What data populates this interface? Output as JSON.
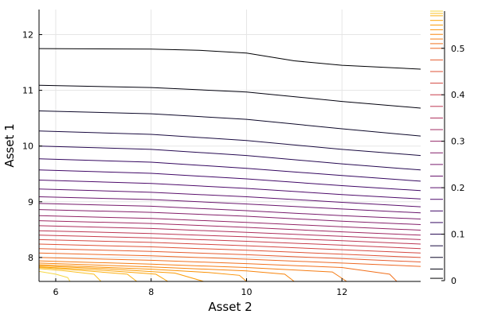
{
  "chart_data": {
    "type": "contour",
    "title": "",
    "xlabel": "Asset 2",
    "ylabel": "Asset 1",
    "xlim": [
      5.65,
      13.65
    ],
    "ylim": [
      7.57,
      12.45
    ],
    "xticks": [
      6,
      8,
      10,
      12
    ],
    "yticks": [
      8,
      9,
      10,
      11,
      12
    ],
    "xtick_labels": [
      "6",
      "8",
      "10",
      "12"
    ],
    "ytick_labels": [
      "8",
      "9",
      "10",
      "11",
      "12"
    ],
    "grid": true,
    "colormap": "inferno",
    "colorbar": {
      "range": [
        0,
        0.58
      ],
      "ticks": [
        0,
        0.1,
        0.2,
        0.3,
        0.4,
        0.5
      ],
      "tick_labels": [
        "0",
        "0.1",
        "0.2",
        "0.3",
        "0.4",
        "0.5"
      ]
    },
    "levels": [
      {
        "value": 0.005,
        "color": "#000004",
        "x": [
          5.65,
          8.0,
          9.0,
          10.0,
          11.0,
          12.0,
          13.65
        ],
        "y": [
          11.75,
          11.74,
          11.72,
          11.67,
          11.53,
          11.45,
          11.38
        ]
      },
      {
        "value": 0.025,
        "color": "#02010e",
        "x": [
          5.65,
          8.0,
          10.0,
          12.0,
          13.65
        ],
        "y": [
          11.09,
          11.05,
          10.97,
          10.8,
          10.68
        ]
      },
      {
        "value": 0.05,
        "color": "#0d0829",
        "x": [
          5.65,
          8.0,
          10.0,
          12.0,
          13.65
        ],
        "y": [
          10.63,
          10.58,
          10.48,
          10.31,
          10.18
        ]
      },
      {
        "value": 0.075,
        "color": "#1b0c41",
        "x": [
          5.65,
          8.0,
          10.0,
          12.0,
          13.65
        ],
        "y": [
          10.27,
          10.21,
          10.1,
          9.94,
          9.83
        ]
      },
      {
        "value": 0.1,
        "color": "#280b53",
        "x": [
          5.65,
          8.0,
          10.0,
          12.0,
          13.65
        ],
        "y": [
          10.0,
          9.94,
          9.83,
          9.68,
          9.57
        ]
      },
      {
        "value": 0.125,
        "color": "#360961",
        "x": [
          5.65,
          8.0,
          10.0,
          12.0,
          13.65
        ],
        "y": [
          9.77,
          9.71,
          9.6,
          9.47,
          9.37
        ]
      },
      {
        "value": 0.15,
        "color": "#420a68",
        "x": [
          5.65,
          8.0,
          10.0,
          12.0,
          13.65
        ],
        "y": [
          9.57,
          9.51,
          9.41,
          9.29,
          9.2
        ]
      },
      {
        "value": 0.175,
        "color": "#4f0d6c",
        "x": [
          5.65,
          8.0,
          10.0,
          12.0,
          13.65
        ],
        "y": [
          9.39,
          9.33,
          9.24,
          9.13,
          9.05
        ]
      },
      {
        "value": 0.2,
        "color": "#5c126e",
        "x": [
          5.65,
          8.0,
          10.0,
          12.0,
          13.65
        ],
        "y": [
          9.23,
          9.17,
          9.09,
          8.99,
          8.91
        ]
      },
      {
        "value": 0.225,
        "color": "#6a176e",
        "x": [
          5.65,
          8.0,
          10.0,
          12.0,
          13.65
        ],
        "y": [
          9.09,
          9.04,
          8.96,
          8.87,
          8.8
        ]
      },
      {
        "value": 0.25,
        "color": "#781c6d",
        "x": [
          5.65,
          8.0,
          10.0,
          12.0,
          13.65
        ],
        "y": [
          8.97,
          8.92,
          8.84,
          8.75,
          8.69
        ]
      },
      {
        "value": 0.275,
        "color": "#84206b",
        "x": [
          5.65,
          8.0,
          10.0,
          12.0,
          13.65
        ],
        "y": [
          8.86,
          8.81,
          8.74,
          8.65,
          8.59
        ]
      },
      {
        "value": 0.3,
        "color": "#932667",
        "x": [
          5.65,
          8.0,
          10.0,
          12.0,
          13.65
        ],
        "y": [
          8.75,
          8.7,
          8.63,
          8.55,
          8.49
        ]
      },
      {
        "value": 0.325,
        "color": "#a02a63",
        "x": [
          5.65,
          8.0,
          10.0,
          12.0,
          13.65
        ],
        "y": [
          8.66,
          8.61,
          8.54,
          8.46,
          8.4
        ]
      },
      {
        "value": 0.35,
        "color": "#ae305c",
        "x": [
          5.65,
          8.0,
          10.0,
          12.0,
          13.65
        ],
        "y": [
          8.57,
          8.52,
          8.45,
          8.38,
          8.32
        ]
      },
      {
        "value": 0.375,
        "color": "#bc3754",
        "x": [
          5.65,
          8.0,
          10.0,
          12.0,
          13.65
        ],
        "y": [
          8.48,
          8.43,
          8.37,
          8.3,
          8.24
        ]
      },
      {
        "value": 0.4,
        "color": "#c73e4c",
        "x": [
          5.65,
          8.0,
          10.0,
          12.0,
          13.65
        ],
        "y": [
          8.4,
          8.35,
          8.29,
          8.22,
          8.16
        ]
      },
      {
        "value": 0.425,
        "color": "#d44842",
        "x": [
          5.65,
          8.0,
          10.0,
          12.0,
          13.65
        ],
        "y": [
          8.32,
          8.27,
          8.21,
          8.14,
          8.08
        ]
      },
      {
        "value": 0.45,
        "color": "#df5337",
        "x": [
          5.65,
          8.0,
          10.0,
          12.0,
          13.65
        ],
        "y": [
          8.24,
          8.19,
          8.13,
          8.06,
          8.0
        ]
      },
      {
        "value": 0.475,
        "color": "#e55c30",
        "x": [
          5.65,
          8.0,
          10.0,
          12.0,
          13.65
        ],
        "y": [
          8.16,
          8.11,
          8.05,
          7.98,
          7.92
        ]
      },
      {
        "value": 0.5,
        "color": "#ed6925",
        "x": [
          5.65,
          8.0,
          10.0,
          12.0,
          13.65
        ],
        "y": [
          8.08,
          8.03,
          7.97,
          7.9,
          7.84
        ]
      },
      {
        "value": 0.51,
        "color": "#f1711f",
        "x": [
          5.65,
          8.0,
          10.0,
          12.0,
          13.0,
          13.15
        ],
        "y": [
          8.0,
          7.95,
          7.89,
          7.82,
          7.7,
          7.57
        ]
      },
      {
        "value": 0.52,
        "color": "#f57d15",
        "x": [
          5.65,
          8.0,
          10.0,
          11.8,
          12.1
        ],
        "y": [
          7.94,
          7.88,
          7.82,
          7.74,
          7.57
        ]
      },
      {
        "value": 0.53,
        "color": "#f8850f",
        "x": [
          5.65,
          8.0,
          10.0,
          10.8,
          11.0
        ],
        "y": [
          7.9,
          7.83,
          7.76,
          7.7,
          7.57
        ]
      },
      {
        "value": 0.54,
        "color": "#fa9207",
        "x": [
          5.65,
          8.0,
          9.2,
          9.85,
          10.0
        ],
        "y": [
          7.87,
          7.79,
          7.73,
          7.68,
          7.57
        ]
      },
      {
        "value": 0.55,
        "color": "#fb9b06",
        "x": [
          5.65,
          7.0,
          8.5,
          9.1
        ],
        "y": [
          7.85,
          7.8,
          7.72,
          7.57
        ]
      },
      {
        "value": 0.56,
        "color": "#fca50a",
        "x": [
          5.65,
          7.0,
          8.1,
          8.35
        ],
        "y": [
          7.83,
          7.77,
          7.7,
          7.57
        ]
      },
      {
        "value": 0.57,
        "color": "#fcb014",
        "x": [
          5.65,
          6.5,
          7.5,
          7.7
        ],
        "y": [
          7.82,
          7.77,
          7.7,
          7.57
        ]
      },
      {
        "value": 0.575,
        "color": "#fbc127",
        "x": [
          5.65,
          6.2,
          6.8,
          6.95
        ],
        "y": [
          7.8,
          7.76,
          7.7,
          7.57
        ]
      },
      {
        "value": 0.58,
        "color": "#f6d746",
        "x": [
          5.65,
          6.0,
          6.25,
          6.3
        ],
        "y": [
          7.75,
          7.7,
          7.64,
          7.57
        ]
      }
    ]
  }
}
